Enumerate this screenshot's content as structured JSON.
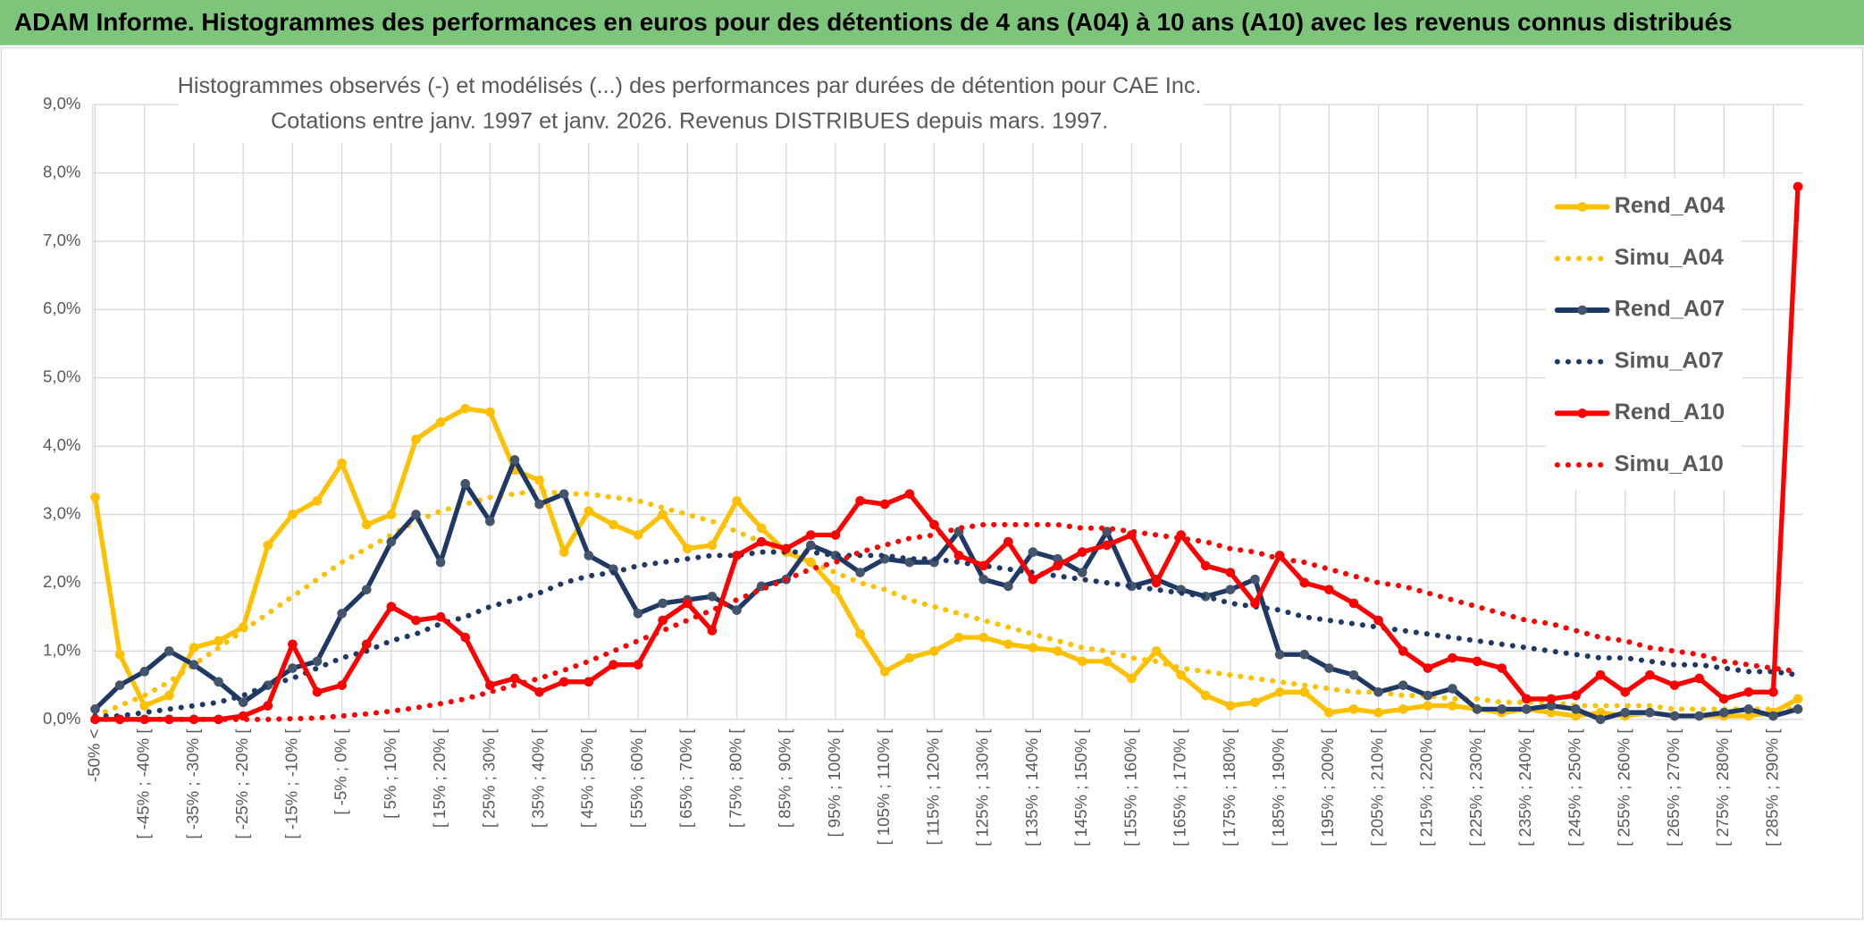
{
  "chart_data": {
    "type": "line",
    "title": "ADAM Informe. Histogrammes des performances en euros pour des détentions de 4 ans (A04) à 10 ans (A10) avec les revenus connus distribués",
    "subtitle": [
      "Histogrammes observés (-) et modélisés (...) des performances par durées de détention pour CAE Inc.",
      "Cotations entre janv. 1997 et janv. 2026. Revenus DISTRIBUES depuis mars. 1997."
    ],
    "categories": [
      "-50% <",
      null,
      "[ -45% ; -40% [",
      null,
      "[ -35% ; -30% [",
      null,
      "[ -25% ; -20% [",
      null,
      "[ -15% ; -10% [",
      null,
      "[ -5% ; 0% [",
      null,
      "[ 5% ; 10% [",
      null,
      "[ 15% ; 20% [",
      null,
      "[ 25% ; 30% [",
      null,
      "[ 35% ; 40% [",
      null,
      "[ 45% ; 50% [",
      null,
      "[ 55% ; 60% [",
      null,
      "[ 65% ; 70% [",
      null,
      "[ 75% ; 80% [",
      null,
      "[ 85% ; 90% [",
      null,
      "[ 95% ; 100% [",
      null,
      "[ 105% ; 110% [",
      null,
      "[ 115% ; 120% [",
      null,
      "[ 125% ; 130% [",
      null,
      "[ 135% ; 140% [",
      null,
      "[ 145% ; 150% [",
      null,
      "[ 155% ; 160% [",
      null,
      "[ 165% ; 170% [",
      null,
      "[ 175% ; 180% [",
      null,
      "[ 185% ; 190% [",
      null,
      "[ 195% ; 200% [",
      null,
      "[ 205% ; 210% [",
      null,
      "[ 215% ; 220% [",
      null,
      "[ 225% ; 230% [",
      null,
      "[ 235% ; 240% [",
      null,
      "[ 245% ; 250% [",
      null,
      "[ 255% ; 260% [",
      null,
      "[ 265% ; 270% [",
      null,
      "[ 275% ; 280% [",
      null,
      "[ 285% ; 290% [",
      null
    ],
    "ylim": [
      0,
      9
    ],
    "yticks": [
      {
        "value": 0,
        "label": "0,0%"
      },
      {
        "value": 1,
        "label": "1,0%"
      },
      {
        "value": 2,
        "label": "2,0%"
      },
      {
        "value": 3,
        "label": "3,0%"
      },
      {
        "value": 4,
        "label": "4,0%"
      },
      {
        "value": 5,
        "label": "5,0%"
      },
      {
        "value": 6,
        "label": "6,0%"
      },
      {
        "value": 7,
        "label": "7,0%"
      },
      {
        "value": 8,
        "label": "8,0%"
      },
      {
        "value": 9,
        "label": "9,0%"
      }
    ],
    "grid": true,
    "legend": "right",
    "series": [
      {
        "name": "Rend_A04",
        "color": "#FFC000",
        "style": "solid",
        "marker_color": "#FFC000",
        "values": [
          3.25,
          0.95,
          0.2,
          0.35,
          1.05,
          1.15,
          1.35,
          2.55,
          3.0,
          3.2,
          3.75,
          2.85,
          3.0,
          4.1,
          4.35,
          4.55,
          4.5,
          3.65,
          3.5,
          2.45,
          3.05,
          2.85,
          2.7,
          3.0,
          2.5,
          2.55,
          3.2,
          2.8,
          2.45,
          2.3,
          1.9,
          1.25,
          0.7,
          0.9,
          1.0,
          1.2,
          1.2,
          1.1,
          1.05,
          1.0,
          0.85,
          0.85,
          0.6,
          1.0,
          0.65,
          0.35,
          0.2,
          0.25,
          0.4,
          0.4,
          0.1,
          0.15,
          0.1,
          0.15,
          0.2,
          0.2,
          0.15,
          0.1,
          0.15,
          0.1,
          0.05,
          0.1,
          0.05,
          0.1,
          0.05,
          0.05,
          0.05,
          0.05,
          0.1,
          0.3
        ]
      },
      {
        "name": "Simu_A04",
        "color": "#FFC000",
        "style": "dotted",
        "values": [
          0.05,
          0.2,
          0.35,
          0.55,
          0.8,
          1.05,
          1.3,
          1.55,
          1.8,
          2.05,
          2.3,
          2.5,
          2.7,
          2.9,
          3.05,
          3.15,
          3.25,
          3.3,
          3.35,
          3.3,
          3.3,
          3.25,
          3.2,
          3.1,
          3.0,
          2.9,
          2.75,
          2.6,
          2.45,
          2.3,
          2.15,
          2.0,
          1.9,
          1.75,
          1.65,
          1.55,
          1.45,
          1.35,
          1.25,
          1.15,
          1.05,
          1.0,
          0.9,
          0.85,
          0.75,
          0.7,
          0.65,
          0.6,
          0.55,
          0.5,
          0.45,
          0.4,
          0.4,
          0.35,
          0.35,
          0.3,
          0.3,
          0.25,
          0.25,
          0.25,
          0.2,
          0.2,
          0.2,
          0.2,
          0.15,
          0.15,
          0.15,
          0.15,
          0.15,
          0.15
        ]
      },
      {
        "name": "Rend_A07",
        "color": "#1F3864",
        "style": "solid",
        "marker_color": "#44546A",
        "values": [
          0.15,
          0.5,
          0.7,
          1.0,
          0.8,
          0.55,
          0.25,
          0.5,
          0.75,
          0.85,
          1.55,
          1.9,
          2.6,
          3.0,
          2.3,
          3.45,
          2.9,
          3.8,
          3.15,
          3.3,
          2.4,
          2.2,
          1.55,
          1.7,
          1.75,
          1.8,
          1.6,
          1.95,
          2.05,
          2.55,
          2.4,
          2.15,
          2.35,
          2.3,
          2.3,
          2.75,
          2.05,
          1.95,
          2.45,
          2.35,
          2.15,
          2.75,
          1.95,
          2.05,
          1.9,
          1.8,
          1.9,
          2.05,
          0.95,
          0.95,
          0.75,
          0.65,
          0.4,
          0.5,
          0.35,
          0.45,
          0.15,
          0.15,
          0.15,
          0.2,
          0.15,
          0.0,
          0.1,
          0.1,
          0.05,
          0.05,
          0.1,
          0.15,
          0.05,
          0.15
        ]
      },
      {
        "name": "Simu_A07",
        "color": "#1F3864",
        "style": "dotted",
        "values": [
          0.05,
          0.05,
          0.1,
          0.15,
          0.2,
          0.25,
          0.35,
          0.5,
          0.6,
          0.75,
          0.9,
          1.0,
          1.15,
          1.25,
          1.4,
          1.5,
          1.65,
          1.75,
          1.85,
          2.0,
          2.1,
          2.15,
          2.25,
          2.3,
          2.35,
          2.4,
          2.4,
          2.45,
          2.45,
          2.45,
          2.4,
          2.4,
          2.4,
          2.35,
          2.35,
          2.3,
          2.25,
          2.2,
          2.15,
          2.1,
          2.05,
          2.0,
          1.95,
          1.9,
          1.85,
          1.8,
          1.7,
          1.65,
          1.6,
          1.5,
          1.45,
          1.4,
          1.35,
          1.3,
          1.25,
          1.2,
          1.15,
          1.1,
          1.05,
          1.0,
          0.95,
          0.9,
          0.9,
          0.85,
          0.8,
          0.8,
          0.75,
          0.7,
          0.7,
          0.65
        ]
      },
      {
        "name": "Rend_A10",
        "color": "#FF0000",
        "style": "solid",
        "marker_color": "#FF0000",
        "values": [
          0,
          0,
          0,
          0,
          0,
          0,
          0.05,
          0.2,
          1.1,
          0.4,
          0.5,
          1.1,
          1.65,
          1.45,
          1.5,
          1.2,
          0.5,
          0.6,
          0.4,
          0.55,
          0.55,
          0.8,
          0.8,
          1.45,
          1.7,
          1.3,
          2.4,
          2.6,
          2.5,
          2.7,
          2.7,
          3.2,
          3.15,
          3.3,
          2.85,
          2.4,
          2.25,
          2.6,
          2.05,
          2.25,
          2.45,
          2.55,
          2.7,
          2.0,
          2.7,
          2.25,
          2.15,
          1.7,
          2.4,
          2.0,
          1.9,
          1.7,
          1.45,
          1.0,
          0.75,
          0.9,
          0.85,
          0.75,
          0.3,
          0.3,
          0.35,
          0.65,
          0.4,
          0.65,
          0.5,
          0.6,
          0.3,
          0.4,
          0.4,
          7.8
        ]
      },
      {
        "name": "Simu_A10",
        "color": "#FF0000",
        "style": "dotted",
        "values": [
          0,
          0,
          0,
          0,
          0,
          0,
          0,
          0,
          0.01,
          0.02,
          0.05,
          0.08,
          0.12,
          0.17,
          0.23,
          0.3,
          0.4,
          0.5,
          0.6,
          0.72,
          0.85,
          1.0,
          1.15,
          1.3,
          1.45,
          1.6,
          1.75,
          1.9,
          2.05,
          2.2,
          2.3,
          2.45,
          2.55,
          2.65,
          2.7,
          2.8,
          2.85,
          2.85,
          2.85,
          2.85,
          2.8,
          2.8,
          2.75,
          2.7,
          2.65,
          2.6,
          2.5,
          2.45,
          2.35,
          2.3,
          2.2,
          2.1,
          2.0,
          1.95,
          1.85,
          1.75,
          1.65,
          1.55,
          1.45,
          1.4,
          1.3,
          1.2,
          1.15,
          1.05,
          1.0,
          0.95,
          0.85,
          0.8,
          0.75,
          0.7
        ]
      }
    ]
  }
}
